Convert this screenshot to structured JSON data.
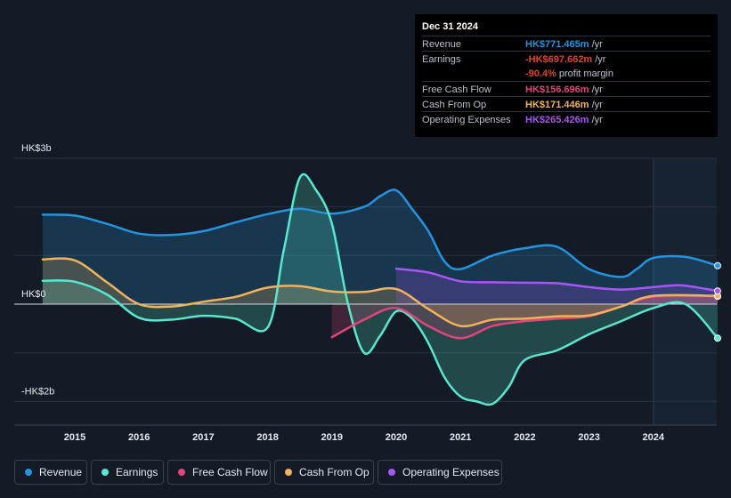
{
  "tooltip": {
    "date": "Dec 31 2024",
    "rows": [
      {
        "label": "Revenue",
        "value": "HK$771.465m",
        "unit": "/yr",
        "color": "#2394df"
      },
      {
        "label": "Earnings",
        "value": "-HK$697.662m",
        "unit": "/yr",
        "color": "#e2412f"
      },
      {
        "label": "",
        "value": "-90.4%",
        "unit": "profit margin",
        "color": "#e2412f"
      },
      {
        "label": "Free Cash Flow",
        "value": "HK$156.696m",
        "unit": "/yr",
        "color": "#e0457b"
      },
      {
        "label": "Cash From Op",
        "value": "HK$171.446m",
        "unit": "/yr",
        "color": "#f0b35c"
      },
      {
        "label": "Operating Expenses",
        "value": "HK$265.426m",
        "unit": "/yr",
        "color": "#a855f7"
      }
    ]
  },
  "legend": [
    {
      "label": "Revenue",
      "color": "#2394df"
    },
    {
      "label": "Earnings",
      "color": "#58e7cf"
    },
    {
      "label": "Free Cash Flow",
      "color": "#e0457b"
    },
    {
      "label": "Cash From Op",
      "color": "#f0b35c"
    },
    {
      "label": "Operating Expenses",
      "color": "#a855f7"
    }
  ],
  "chart_data": {
    "type": "area",
    "currency": "HK$",
    "y_unit": "billions",
    "ylim": [
      -2,
      3
    ],
    "y_tick_labels": [
      {
        "value": 3,
        "label": "HK$3b"
      },
      {
        "value": 0,
        "label": "HK$0"
      },
      {
        "value": -2,
        "label": "-HK$2b"
      }
    ],
    "x_ticks": [
      2015,
      2016,
      2017,
      2018,
      2019,
      2020,
      2021,
      2022,
      2023,
      2024
    ],
    "xlim": [
      2014.1,
      2025.0
    ],
    "highlight_from": 2024.0,
    "series": [
      {
        "name": "Revenue",
        "color": "#2394df",
        "fill": true,
        "points": [
          [
            2014.5,
            1.84
          ],
          [
            2015.0,
            1.82
          ],
          [
            2015.5,
            1.65
          ],
          [
            2016.0,
            1.45
          ],
          [
            2016.5,
            1.42
          ],
          [
            2017.0,
            1.5
          ],
          [
            2017.5,
            1.68
          ],
          [
            2018.0,
            1.85
          ],
          [
            2018.5,
            1.96
          ],
          [
            2019.0,
            1.86
          ],
          [
            2019.5,
            2.0
          ],
          [
            2019.75,
            2.22
          ],
          [
            2020.0,
            2.34
          ],
          [
            2020.25,
            1.95
          ],
          [
            2020.5,
            1.5
          ],
          [
            2020.75,
            0.88
          ],
          [
            2021.0,
            0.72
          ],
          [
            2021.5,
            1.0
          ],
          [
            2022.0,
            1.15
          ],
          [
            2022.5,
            1.18
          ],
          [
            2023.0,
            0.72
          ],
          [
            2023.5,
            0.56
          ],
          [
            2023.75,
            0.73
          ],
          [
            2024.0,
            0.95
          ],
          [
            2024.5,
            0.97
          ],
          [
            2025.0,
            0.79
          ]
        ]
      },
      {
        "name": "Earnings",
        "color": "#58e7cf",
        "fill": true,
        "points": [
          [
            2014.5,
            0.48
          ],
          [
            2015.0,
            0.46
          ],
          [
            2015.5,
            0.2
          ],
          [
            2016.0,
            -0.28
          ],
          [
            2016.5,
            -0.32
          ],
          [
            2017.0,
            -0.24
          ],
          [
            2017.5,
            -0.3
          ],
          [
            2018.0,
            -0.48
          ],
          [
            2018.25,
            1.1
          ],
          [
            2018.5,
            2.6
          ],
          [
            2018.75,
            2.35
          ],
          [
            2019.0,
            1.65
          ],
          [
            2019.25,
            0.0
          ],
          [
            2019.5,
            -1.0
          ],
          [
            2019.75,
            -0.65
          ],
          [
            2020.0,
            -0.15
          ],
          [
            2020.25,
            -0.3
          ],
          [
            2020.5,
            -0.8
          ],
          [
            2020.75,
            -1.5
          ],
          [
            2021.0,
            -1.9
          ],
          [
            2021.25,
            -2.0
          ],
          [
            2021.5,
            -2.05
          ],
          [
            2021.75,
            -1.7
          ],
          [
            2022.0,
            -1.15
          ],
          [
            2022.5,
            -0.95
          ],
          [
            2023.0,
            -0.62
          ],
          [
            2023.5,
            -0.35
          ],
          [
            2024.0,
            -0.08
          ],
          [
            2024.5,
            0.0
          ],
          [
            2025.0,
            -0.7
          ]
        ]
      },
      {
        "name": "Free Cash Flow",
        "color": "#e0457b",
        "fill": true,
        "points": [
          [
            2019.0,
            -0.68
          ],
          [
            2019.5,
            -0.32
          ],
          [
            2020.0,
            -0.08
          ],
          [
            2020.5,
            -0.45
          ],
          [
            2021.0,
            -0.7
          ],
          [
            2021.5,
            -0.45
          ],
          [
            2022.0,
            -0.35
          ],
          [
            2022.5,
            -0.3
          ],
          [
            2023.0,
            -0.25
          ],
          [
            2023.5,
            -0.05
          ],
          [
            2024.0,
            0.15
          ],
          [
            2025.0,
            0.16
          ]
        ]
      },
      {
        "name": "Cash From Op",
        "color": "#f0b35c",
        "fill": true,
        "points": [
          [
            2014.5,
            0.92
          ],
          [
            2015.0,
            0.9
          ],
          [
            2015.5,
            0.45
          ],
          [
            2016.0,
            0.0
          ],
          [
            2016.5,
            -0.05
          ],
          [
            2017.0,
            0.05
          ],
          [
            2017.5,
            0.15
          ],
          [
            2018.0,
            0.34
          ],
          [
            2018.5,
            0.37
          ],
          [
            2019.0,
            0.26
          ],
          [
            2019.5,
            0.25
          ],
          [
            2020.0,
            0.31
          ],
          [
            2020.5,
            -0.1
          ],
          [
            2021.0,
            -0.45
          ],
          [
            2021.5,
            -0.32
          ],
          [
            2022.0,
            -0.3
          ],
          [
            2022.5,
            -0.25
          ],
          [
            2023.0,
            -0.23
          ],
          [
            2023.5,
            -0.05
          ],
          [
            2024.0,
            0.17
          ],
          [
            2025.0,
            0.17
          ]
        ]
      },
      {
        "name": "Operating Expenses",
        "color": "#a855f7",
        "fill": true,
        "points": [
          [
            2020.0,
            0.73
          ],
          [
            2020.5,
            0.65
          ],
          [
            2021.0,
            0.47
          ],
          [
            2021.5,
            0.45
          ],
          [
            2022.0,
            0.44
          ],
          [
            2022.5,
            0.43
          ],
          [
            2023.0,
            0.35
          ],
          [
            2023.5,
            0.3
          ],
          [
            2024.0,
            0.35
          ],
          [
            2024.25,
            0.38
          ],
          [
            2024.5,
            0.38
          ],
          [
            2025.0,
            0.27
          ]
        ]
      }
    ]
  }
}
